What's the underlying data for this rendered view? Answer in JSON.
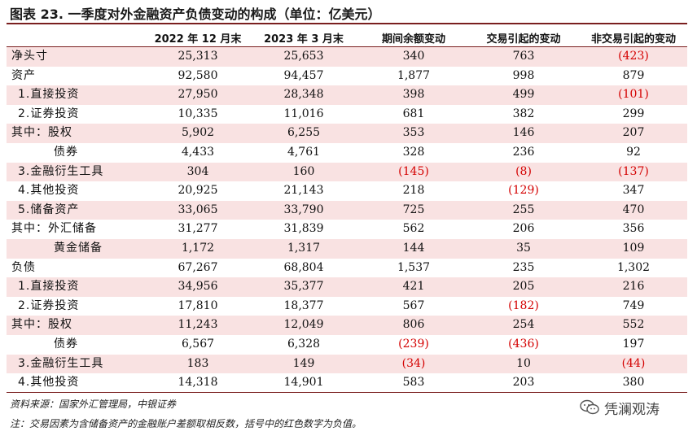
{
  "title": "图表 23. 一季度对外金融资产负债变动的构成（单位：亿美元）",
  "columns": [
    "2022 年 12 月末",
    "2023 年 3 月末",
    "期间余额变动",
    "交易引起的变动",
    "非交易引起的变动"
  ],
  "rows": [
    {
      "label": "净头寸",
      "indent": 0,
      "shaded": true,
      "cells": [
        "25,313",
        "25,653",
        "340",
        "763",
        "(423)"
      ]
    },
    {
      "label": "资产",
      "indent": 0,
      "shaded": false,
      "cells": [
        "92,580",
        "94,457",
        "1,877",
        "998",
        "879"
      ]
    },
    {
      "label": "1.直接投资",
      "indent": 1,
      "shaded": true,
      "cells": [
        "27,950",
        "28,348",
        "398",
        "499",
        "(101)"
      ]
    },
    {
      "label": "2.证券投资",
      "indent": 1,
      "shaded": false,
      "cells": [
        "10,335",
        "11,016",
        "681",
        "382",
        "299"
      ]
    },
    {
      "label": "其中：股权",
      "indent": 0,
      "shaded": true,
      "cells": [
        "5,902",
        "6,255",
        "353",
        "146",
        "207"
      ]
    },
    {
      "label": "债券",
      "indent": 3,
      "shaded": false,
      "cells": [
        "4,433",
        "4,761",
        "328",
        "236",
        "92"
      ]
    },
    {
      "label": "3.金融衍生工具",
      "indent": 1,
      "shaded": true,
      "cells": [
        "304",
        "160",
        "(145)",
        "(8)",
        "(137)"
      ]
    },
    {
      "label": "4.其他投资",
      "indent": 1,
      "shaded": false,
      "cells": [
        "20,925",
        "21,143",
        "218",
        "(129)",
        "347"
      ]
    },
    {
      "label": "5.储备资产",
      "indent": 1,
      "shaded": true,
      "cells": [
        "33,065",
        "33,790",
        "725",
        "255",
        "470"
      ]
    },
    {
      "label": "其中：外汇储备",
      "indent": 0,
      "shaded": false,
      "cells": [
        "31,277",
        "31,839",
        "562",
        "206",
        "356"
      ]
    },
    {
      "label": "黄金储备",
      "indent": 3,
      "shaded": true,
      "cells": [
        "1,172",
        "1,317",
        "144",
        "35",
        "109"
      ]
    },
    {
      "label": "负债",
      "indent": 0,
      "shaded": false,
      "cells": [
        "67,267",
        "68,804",
        "1,537",
        "235",
        "1,302"
      ]
    },
    {
      "label": "1.直接投资",
      "indent": 1,
      "shaded": true,
      "cells": [
        "34,956",
        "35,377",
        "421",
        "205",
        "216"
      ]
    },
    {
      "label": "2.证券投资",
      "indent": 1,
      "shaded": false,
      "cells": [
        "17,810",
        "18,377",
        "567",
        "(182)",
        "749"
      ]
    },
    {
      "label": "其中：股权",
      "indent": 0,
      "shaded": true,
      "cells": [
        "11,243",
        "12,049",
        "806",
        "254",
        "552"
      ]
    },
    {
      "label": "债券",
      "indent": 3,
      "shaded": false,
      "cells": [
        "6,567",
        "6,328",
        "(239)",
        "(436)",
        "197"
      ]
    },
    {
      "label": "3.金融衍生工具",
      "indent": 1,
      "shaded": true,
      "cells": [
        "183",
        "149",
        "(34)",
        "10",
        "(44)"
      ]
    },
    {
      "label": "4.其他投资",
      "indent": 1,
      "shaded": false,
      "cells": [
        "14,318",
        "14,901",
        "583",
        "203",
        "380"
      ]
    }
  ],
  "source": "资料来源：国家外汇管理局，中银证券",
  "note": "注：交易因素为含储备资产的金融账户差额取相反数，括号中的红色数字为负值。",
  "watermark": "凭澜观涛",
  "negative_color": "#d40000",
  "shade_color": "#f9e2e2",
  "rule_color": "#7a1f1f",
  "watermark_icon": "wechat-icon"
}
